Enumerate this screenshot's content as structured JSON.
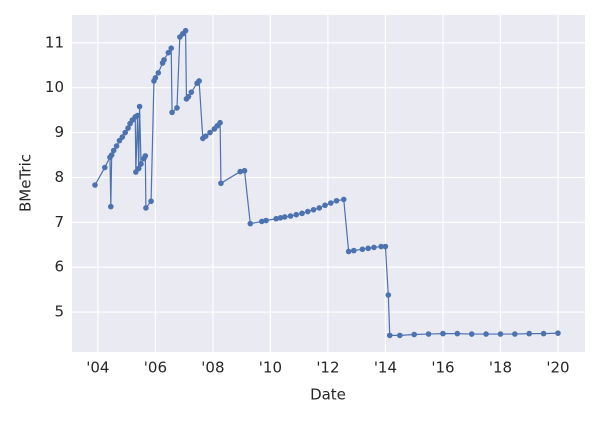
{
  "chart_data": {
    "type": "line",
    "xlabel": "Date",
    "ylabel": "BMeTric",
    "x": [
      2003.9,
      2004.24,
      2004.42,
      2004.45,
      2004.48,
      2004.55,
      2004.65,
      2004.75,
      2004.85,
      2004.95,
      2005.05,
      2005.12,
      2005.2,
      2005.3,
      2005.32,
      2005.38,
      2005.42,
      2005.45,
      2005.5,
      2005.6,
      2005.65,
      2005.67,
      2005.85,
      2005.95,
      2006.0,
      2006.1,
      2006.25,
      2006.3,
      2006.45,
      2006.55,
      2006.58,
      2006.75,
      2006.85,
      2006.95,
      2007.05,
      2007.08,
      2007.15,
      2007.25,
      2007.45,
      2007.52,
      2007.65,
      2007.75,
      2007.9,
      2008.05,
      2008.15,
      2008.25,
      2008.28,
      2008.95,
      2009.1,
      2009.3,
      2009.7,
      2009.85,
      2010.2,
      2010.35,
      2010.5,
      2010.7,
      2010.9,
      2011.1,
      2011.3,
      2011.5,
      2011.7,
      2011.9,
      2012.1,
      2012.3,
      2012.55,
      2012.72,
      2012.9,
      2013.2,
      2013.4,
      2013.6,
      2013.85,
      2014.0,
      2014.1,
      2014.15,
      2014.5,
      2015.0,
      2015.5,
      2016.0,
      2016.5,
      2017.0,
      2017.5,
      2018.0,
      2018.5,
      2019.0,
      2019.5,
      2020.0
    ],
    "series": [
      {
        "name": "BMeTric",
        "color": "#4c72b0",
        "values": [
          7.83,
          8.22,
          8.45,
          7.35,
          8.5,
          8.6,
          8.7,
          8.82,
          8.9,
          9.0,
          9.1,
          9.2,
          9.28,
          9.35,
          8.12,
          9.38,
          8.2,
          9.58,
          8.3,
          8.42,
          8.48,
          7.32,
          7.47,
          10.15,
          10.22,
          10.33,
          10.55,
          10.62,
          10.78,
          10.88,
          9.45,
          9.55,
          11.13,
          11.2,
          11.27,
          9.75,
          9.8,
          9.9,
          10.1,
          10.15,
          8.87,
          8.92,
          9.0,
          9.08,
          9.15,
          9.22,
          7.87,
          8.13,
          8.15,
          6.97,
          7.02,
          7.04,
          7.08,
          7.1,
          7.12,
          7.14,
          7.17,
          7.2,
          7.24,
          7.28,
          7.32,
          7.38,
          7.43,
          7.48,
          7.51,
          6.35,
          6.37,
          6.4,
          6.42,
          6.44,
          6.46,
          6.46,
          5.38,
          4.48,
          4.48,
          4.5,
          4.51,
          4.52,
          4.52,
          4.51,
          4.51,
          4.51,
          4.51,
          4.52,
          4.52,
          4.53
        ]
      }
    ],
    "xlim": [
      2003.1,
      2020.94
    ],
    "xticks": [
      {
        "value": 2004,
        "label": "'04"
      },
      {
        "value": 2006,
        "label": "'06"
      },
      {
        "value": 2008,
        "label": "'08"
      },
      {
        "value": 2010,
        "label": "'10"
      },
      {
        "value": 2012,
        "label": "'12"
      },
      {
        "value": 2014,
        "label": "'14"
      },
      {
        "value": 2016,
        "label": "'16"
      },
      {
        "value": 2018,
        "label": "'18"
      },
      {
        "value": 2020,
        "label": "'20"
      }
    ],
    "ylim": [
      4.11,
      11.62
    ],
    "yticks": [
      5,
      6,
      7,
      8,
      9,
      10,
      11
    ],
    "grid": true
  }
}
